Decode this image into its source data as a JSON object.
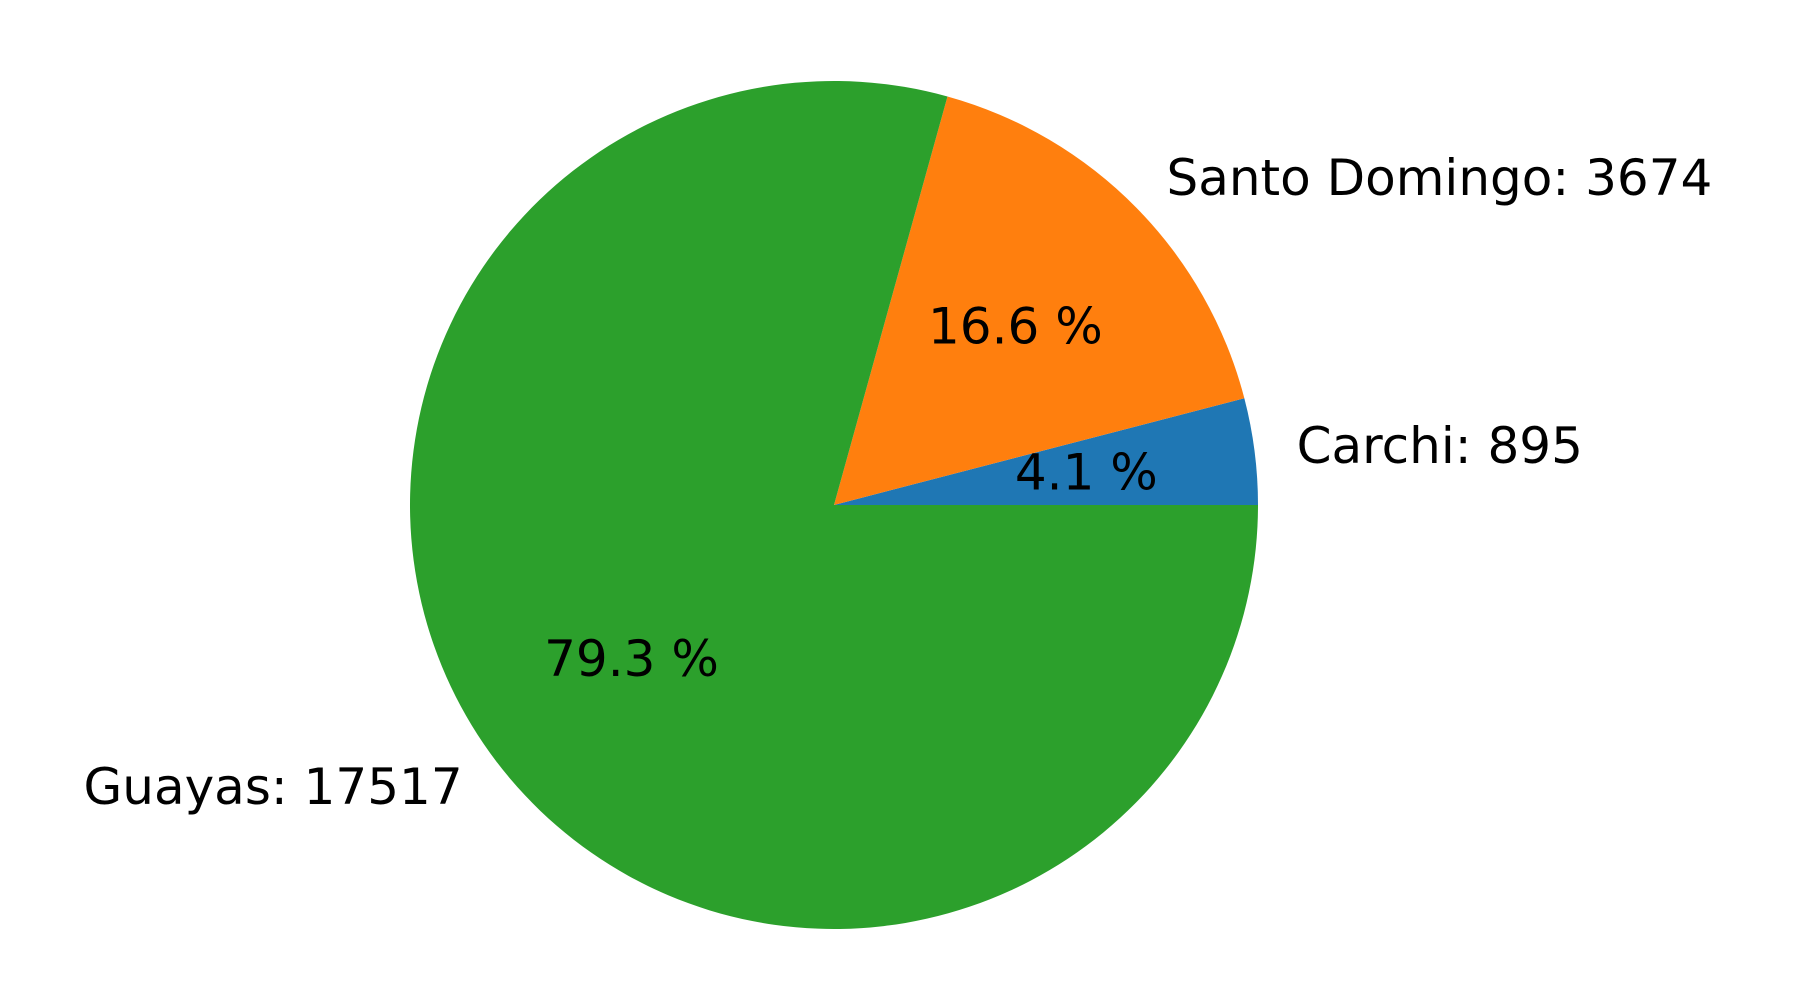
{
  "chart_data": {
    "type": "pie",
    "title": "",
    "slices": [
      {
        "label": "Carchi",
        "value": 895,
        "percent_label": "4.1 %",
        "color": "#1f77b4",
        "label_text": "Carchi: 895"
      },
      {
        "label": "Santo Domingo",
        "value": 3674,
        "percent_label": "16.6 %",
        "color": "#ff7f0e",
        "label_text": "Santo Domingo: 3674"
      },
      {
        "label": "Guayas",
        "value": 17517,
        "percent_label": "79.3 %",
        "color": "#2ca02c",
        "label_text": "Guayas: 17517"
      }
    ],
    "start_angle_deg": 0,
    "direction": "counterclockwise",
    "legend": "none"
  }
}
